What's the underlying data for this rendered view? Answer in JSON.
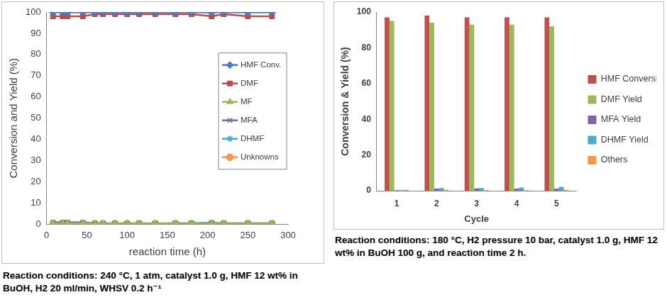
{
  "chart_data": [
    {
      "type": "line",
      "x_label": "reaction time (h)",
      "y_label": "Conversion and Yield (%)",
      "caption": "Reaction conditions: 240 °C, 1 atm, catalyst 1.0 g, HMF 12 wt% in BuOH, H2 20 ml/min, WHSV 0.2 h⁻¹",
      "x": [
        8,
        20,
        26,
        45,
        60,
        70,
        85,
        100,
        115,
        135,
        160,
        180,
        205,
        220,
        250,
        280
      ],
      "xlim": [
        0,
        300
      ],
      "xticks": [
        0,
        50,
        100,
        150,
        200,
        250,
        300
      ],
      "ylim": [
        0,
        100
      ],
      "yticks": [
        0,
        10,
        20,
        30,
        40,
        50,
        60,
        70,
        80,
        90,
        100
      ],
      "grid": false,
      "legend": "right",
      "series": [
        {
          "name": "HMF Conv.",
          "color": "#4a7ebb",
          "marker": "diamond",
          "values": [
            99.8,
            99.8,
            99.8,
            99.8,
            99.8,
            99.8,
            99.8,
            99.8,
            99.8,
            99.8,
            99.8,
            99.8,
            99.8,
            99.8,
            99.8,
            99.8
          ]
        },
        {
          "name": "DMF",
          "color": "#be4b48",
          "marker": "square",
          "values": [
            98,
            98,
            98,
            98,
            99,
            99,
            99,
            99,
            99,
            99,
            99,
            99,
            98,
            99,
            98,
            98
          ]
        },
        {
          "name": "MF",
          "color": "#98b954",
          "marker": "triangle",
          "values": [
            0.5,
            0.5,
            0.5,
            0.5,
            0.3,
            0.3,
            0.3,
            0.3,
            0.3,
            0.3,
            0.3,
            0.3,
            0.3,
            0.3,
            0.3,
            0.3
          ]
        },
        {
          "name": "MFA",
          "color": "#7d60a0",
          "marker": "x",
          "values": [
            1,
            1,
            1,
            1,
            0.5,
            0.5,
            0.5,
            0.5,
            0.5,
            0.5,
            0.5,
            0.5,
            0.5,
            0.5,
            0.5,
            0.5
          ]
        },
        {
          "name": "DHMF",
          "color": "#46aac5",
          "marker": "star",
          "values": [
            0.3,
            0.3,
            0.3,
            0.3,
            0.3,
            0.3,
            0.3,
            0.3,
            0.3,
            0.3,
            0.5,
            0.5,
            0.8,
            0.5,
            0.5,
            0.5
          ]
        },
        {
          "name": "Unknowns",
          "color": "#f79646",
          "marker": "circle",
          "values": [
            0.5,
            0.5,
            0.5,
            0.5,
            0.4,
            0.4,
            0.4,
            0.4,
            0.4,
            0.4,
            0.4,
            0.4,
            0.4,
            0.4,
            0.4,
            0.4
          ]
        }
      ]
    },
    {
      "type": "bar",
      "x_label": "Cycle",
      "y_label": "Conversion & Yield (%)",
      "caption": "Reaction conditions: 180 °C, H2 pressure 10 bar, catalyst 1.0 g, HMF 12 wt% in BuOH 100 g, and reaction time 2 h.",
      "categories": [
        "1",
        "2",
        "3",
        "4",
        "5"
      ],
      "ylim": [
        0,
        100
      ],
      "yticks": [
        0,
        20,
        40,
        60,
        80,
        100
      ],
      "grid": false,
      "legend": "right",
      "series": [
        {
          "name": "HMF Conversion",
          "color": "#c0504d",
          "values": [
            97,
            98,
            97,
            97,
            97
          ]
        },
        {
          "name": "DMF Yield",
          "color": "#9bbb59",
          "values": [
            95,
            94,
            93,
            93,
            92
          ]
        },
        {
          "name": "MFA Yield",
          "color": "#8064a2",
          "values": [
            0.3,
            1.2,
            1.3,
            1.2,
            1.2
          ]
        },
        {
          "name": "DHMF Yield",
          "color": "#4bacc6",
          "values": [
            0.3,
            1.5,
            1.5,
            1.8,
            2.2
          ]
        },
        {
          "name": "Others",
          "color": "#f79646",
          "values": [
            0.5,
            0.5,
            0.3,
            0.3,
            0.4
          ]
        }
      ]
    }
  ]
}
